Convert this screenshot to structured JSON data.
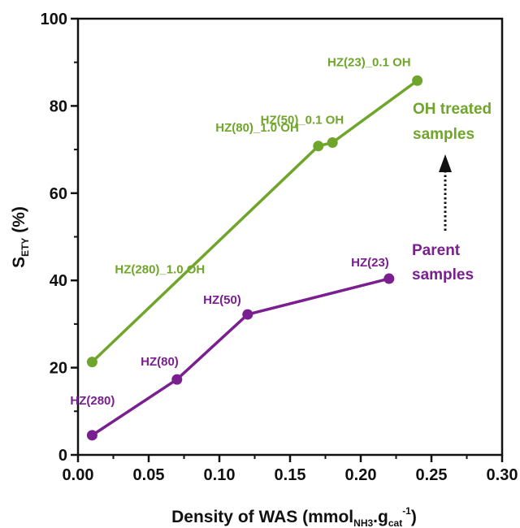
{
  "chart_data": {
    "type": "line",
    "xlabel": {
      "main": "Density of WAS (mmol",
      "sub1": "NH3",
      "dot": ".g",
      "sub2": "cat",
      "sup": "-1",
      "close": ")"
    },
    "ylabel": {
      "main": "S",
      "sub": "ETY",
      "unit": " (%)"
    },
    "xlim": [
      0,
      0.3
    ],
    "ylim": [
      0,
      100
    ],
    "xticks": [
      0.0,
      0.05,
      0.1,
      0.15,
      0.2,
      0.25,
      0.3
    ],
    "xtick_labels": [
      "0.00",
      "0.05",
      "0.10",
      "0.15",
      "0.20",
      "0.25",
      "0.30"
    ],
    "yticks": [
      0,
      20,
      40,
      60,
      80,
      100
    ],
    "ytick_labels": [
      "0",
      "20",
      "40",
      "60",
      "80",
      "100"
    ],
    "series": [
      {
        "color": "#6fa52a",
        "points": [
          {
            "x": 0.01,
            "y": 21.3,
            "label": "HZ(280)_1.0 OH"
          },
          {
            "x": 0.17,
            "y": 70.8,
            "label": "HZ(80)_1.0 OH"
          },
          {
            "x": 0.18,
            "y": 71.6,
            "label": "HZ(50)_0.1 OH"
          },
          {
            "x": 0.24,
            "y": 85.8,
            "label": "HZ(23)_0.1 OH"
          }
        ]
      },
      {
        "color": "#7a1f8f",
        "points": [
          {
            "x": 0.01,
            "y": 4.5,
            "label": "HZ(280)"
          },
          {
            "x": 0.07,
            "y": 17.3,
            "label": "HZ(80)"
          },
          {
            "x": 0.12,
            "y": 32.2,
            "label": "HZ(50)"
          },
          {
            "x": 0.22,
            "y": 40.4,
            "label": "HZ(23)"
          }
        ]
      }
    ],
    "annotations": {
      "oh_treated": [
        "OH treated",
        "samples"
      ],
      "parent": [
        "Parent",
        "samples"
      ],
      "arrow": "dotted upward arrow from Parent samples to OH treated samples"
    },
    "grid": false,
    "legend": "none"
  }
}
